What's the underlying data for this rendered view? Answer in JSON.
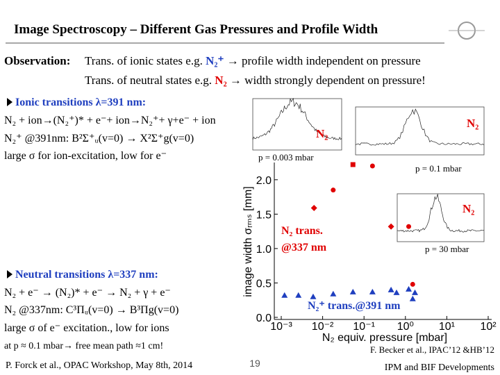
{
  "header": {
    "title": "Image Spectroscopy – Different Gas Pressures and Profile Width"
  },
  "observation": {
    "label": "Observation:",
    "line1": [
      "Trans. of ionic states e.g. ",
      "N₂⁺",
      " → profile width independent on pressure"
    ],
    "line2": [
      "Trans. of neutral states e.g. ",
      "N₂",
      " → width strongly dependent on pressure!"
    ]
  },
  "ionic": {
    "heading": "Ionic transitions λ=391 nm:",
    "lines": [
      "N₂ + ion→(N₂⁺)* + e⁻+ ion→N₂⁺+ γ+e⁻ + ion",
      "N₂⁺ @391nm: B²Σ⁺ᵤ(v=0) → X²Σ⁺g(v=0)",
      "large σ for ion-excitation, low for e⁻"
    ]
  },
  "neutral": {
    "heading": "Neutral transitions λ=337 nm:",
    "lines": [
      "N₂ + e⁻ → (N₂)* + e⁻ → N₂ + γ + e⁻",
      "N₂ @337nm: C³Πᵤ(v=0) → B³Πg(v=0)",
      "large σ of e⁻ excitation., low for ions",
      "at p ≈ 0.1 mbar→ free mean path ≈1 cm!"
    ]
  },
  "insets": [
    {
      "label": "N₂",
      "pressure": "p = 0.003 mbar"
    },
    {
      "label": "N₂",
      "pressure": "p = 0.1 mbar"
    },
    {
      "label": "N₂",
      "pressure": "p = 30 mbar"
    }
  ],
  "chart_data": {
    "type": "scatter",
    "x_label": "N₂ equiv. pressure [mbar]",
    "y_label": "image width σᵣₘₛ [mm]",
    "xlog": true,
    "xlim": [
      0.001,
      100
    ],
    "xticks": [
      {
        "value": 0.001,
        "label": "10⁻³"
      },
      {
        "value": 0.01,
        "label": "10⁻²"
      },
      {
        "value": 0.1,
        "label": "10⁻¹"
      },
      {
        "value": 1,
        "label": "10⁰"
      },
      {
        "value": 10,
        "label": "10¹"
      },
      {
        "value": 100,
        "label": "10²"
      }
    ],
    "ylim": [
      0,
      2.2
    ],
    "yticks": [
      {
        "value": 0,
        "label": "0.0"
      },
      0.5,
      {
        "value": 1,
        "label": "1.0"
      },
      1.5,
      {
        "value": 2,
        "label": "2.0"
      }
    ],
    "series": [
      {
        "label": [
          "N₂ trans.",
          "@337 nm"
        ],
        "color": "#e00000",
        "markers": [
          "square",
          "circle",
          "circle",
          "diamond",
          "diamond",
          "circle",
          "circle"
        ],
        "x": [
          0.054,
          0.16,
          0.018,
          0.0062,
          0.45,
          1.2,
          1.5
        ],
        "values": [
          2.22,
          2.2,
          1.85,
          1.59,
          1.32,
          1.32,
          0.48
        ]
      },
      {
        "label": [
          "N₂⁺ trans.@391 nm"
        ],
        "color": "#1f3fbf",
        "markers": [
          "triangle",
          "triangle",
          "triangle",
          "triangle",
          "triangle",
          "triangle",
          "triangle",
          "triangle",
          "triangle",
          "triangle",
          "triangle"
        ],
        "x": [
          0.0012,
          0.0026,
          0.0059,
          0.018,
          0.054,
          0.16,
          0.45,
          0.61,
          1.2,
          1.5,
          1.7
        ],
        "values": [
          0.32,
          0.32,
          0.3,
          0.34,
          0.37,
          0.37,
          0.4,
          0.36,
          0.41,
          0.27,
          0.36
        ]
      }
    ]
  },
  "footer": {
    "left": "P. Forck et al., OPAC Workshop, May 8th, 2014",
    "page": "19",
    "right": "IPM and BIF Developments",
    "citation": "F. Becker et al., IPAC’12 &HB’12"
  }
}
